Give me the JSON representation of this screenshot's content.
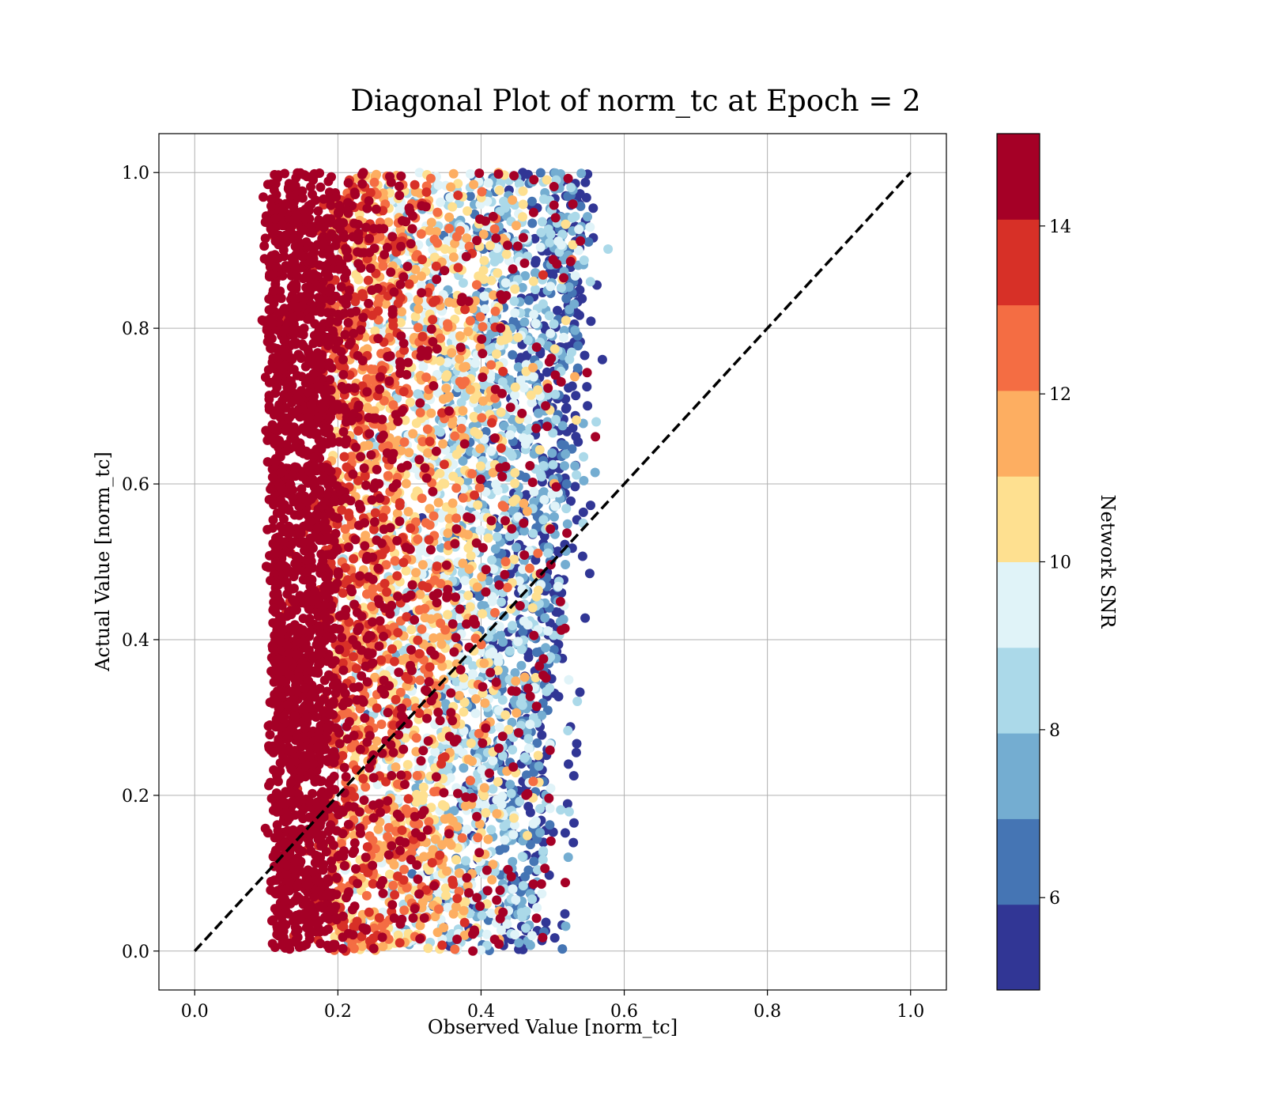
{
  "chart_data": {
    "type": "scatter",
    "title": "Diagonal Plot of norm_tc at Epoch = 2",
    "xlabel": "Observed Value [norm_tc]",
    "ylabel": "Actual Value [norm_tc]",
    "xlim": [
      -0.05,
      1.05
    ],
    "ylim": [
      -0.05,
      1.05
    ],
    "grid": true,
    "x_ticks": [
      0.0,
      0.2,
      0.4,
      0.6,
      0.8,
      1.0
    ],
    "x_tick_labels": [
      "0.0",
      "0.2",
      "0.4",
      "0.6",
      "0.8",
      "1.0"
    ],
    "y_ticks": [
      0.0,
      0.2,
      0.4,
      0.6,
      0.8,
      1.0
    ],
    "y_tick_labels": [
      "0.0",
      "0.2",
      "0.4",
      "0.6",
      "0.8",
      "1.0"
    ],
    "reference_line": {
      "x": [
        0.0,
        1.0
      ],
      "y": [
        0.0,
        1.0
      ],
      "style": "dashed",
      "color": "#000000"
    },
    "point_cloud": {
      "x_range": [
        0.09,
        0.58
      ],
      "y_range": [
        0.0,
        1.0
      ],
      "color_variable": "Network SNR",
      "trend": "high SNR at low observed values, decreasing SNR toward observed value ~0.55"
    },
    "colorbar": {
      "label": "Network SNR",
      "range": [
        4.9,
        15.1
      ],
      "boundaries": [
        4.9,
        5.92,
        6.94,
        7.96,
        8.98,
        10.0,
        11.02,
        12.04,
        13.06,
        14.08,
        15.1
      ],
      "colors": [
        "#313695",
        "#4575b4",
        "#74add1",
        "#abd9e9",
        "#e0f3f8",
        "#fee090",
        "#fdae61",
        "#f46d43",
        "#d73027",
        "#a50026"
      ],
      "ticks": [
        6,
        8,
        10,
        12,
        14
      ],
      "tick_labels": [
        "6",
        "8",
        "10",
        "12",
        "14"
      ]
    }
  }
}
